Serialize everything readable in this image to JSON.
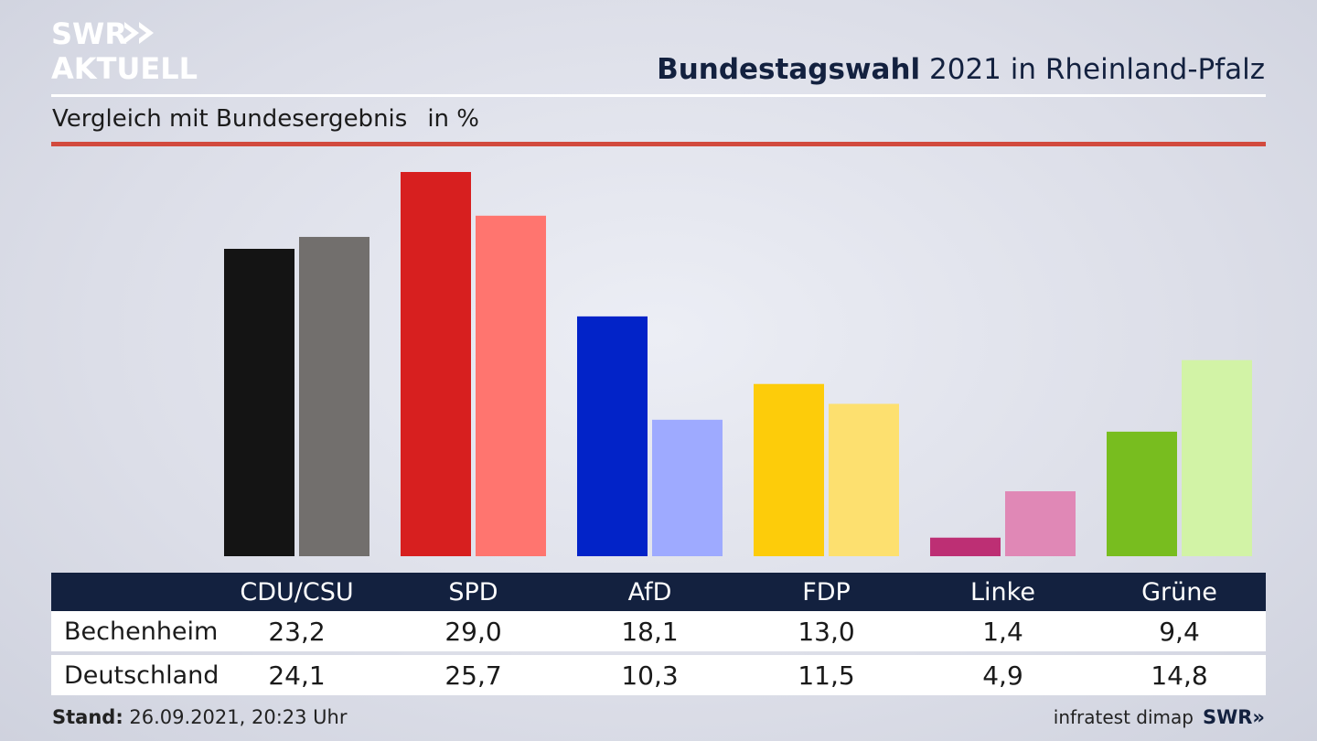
{
  "header": {
    "logo_line1": "SWR",
    "logo_line2": "AKTUELL",
    "title_bold": "Bundestagswahl",
    "title_rest": " 2021 in Rheinland-Pfalz",
    "subtitle": "Vergleich mit Bundesergebnis",
    "unit": "in %"
  },
  "chart_data": {
    "type": "bar",
    "categories": [
      "CDU/CSU",
      "SPD",
      "AfD",
      "FDP",
      "Linke",
      "Grüne"
    ],
    "series": [
      {
        "name": "Bechenheim",
        "values": [
          23.2,
          29.0,
          18.1,
          13.0,
          1.4,
          9.4
        ]
      },
      {
        "name": "Deutschland",
        "values": [
          24.1,
          25.7,
          10.3,
          11.5,
          4.9,
          14.8
        ]
      }
    ],
    "colors": {
      "Bechenheim": [
        "#141414",
        "#d71f1f",
        "#0223c8",
        "#fdcc0a",
        "#bd2f74",
        "#78bd1f"
      ],
      "Deutschland": [
        "#726f6d",
        "#ff756f",
        "#9eaaff",
        "#fde06f",
        "#e088b6",
        "#d2f3a6"
      ]
    },
    "display_values": {
      "Bechenheim": [
        "23,2",
        "29,0",
        "18,1",
        "13,0",
        "1,4",
        "9,4"
      ],
      "Deutschland": [
        "24,1",
        "25,7",
        "10,3",
        "11,5",
        "4,9",
        "14,8"
      ]
    },
    "ylim": [
      0,
      29.0
    ],
    "grid": false,
    "legend": "none"
  },
  "footer": {
    "stand_label": "Stand:",
    "stand_value": " 26.09.2021, 20:23 Uhr",
    "source": "infratest dimap",
    "brand": "SWR»"
  }
}
